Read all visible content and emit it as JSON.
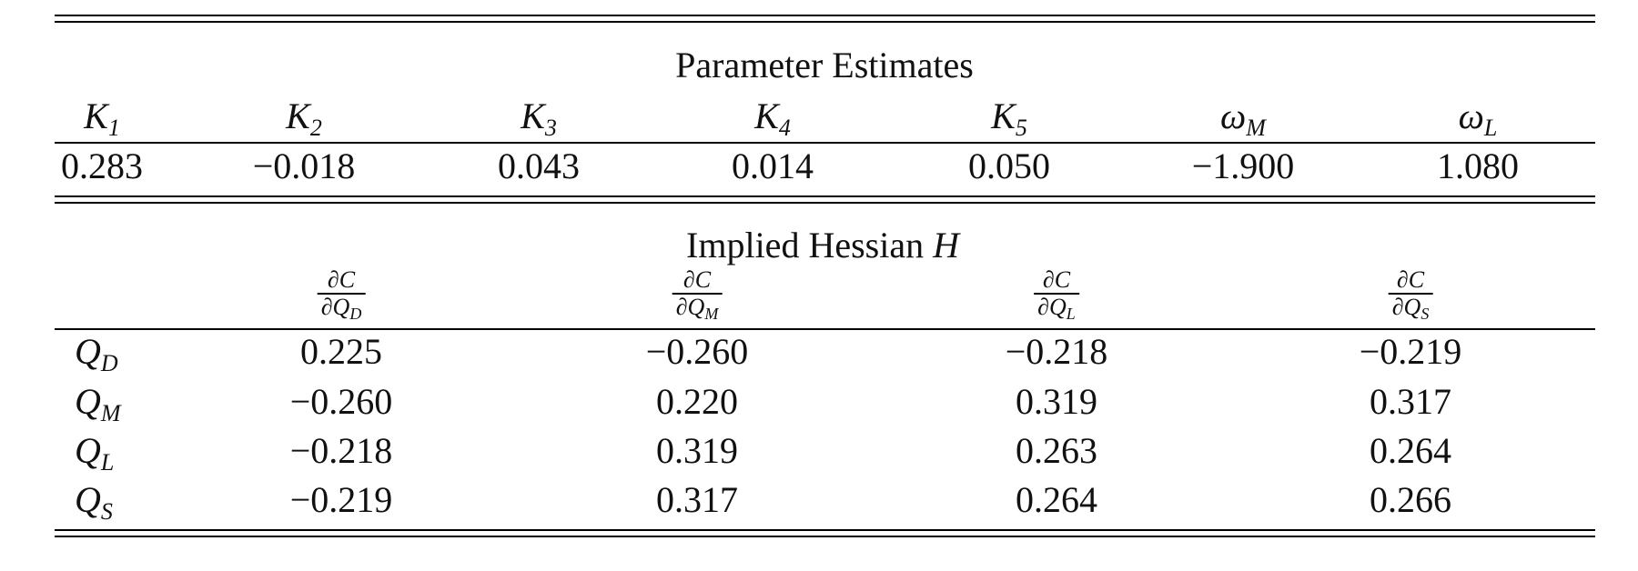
{
  "param_section": {
    "title": "Parameter Estimates",
    "columns": [
      {
        "base": "K",
        "sub": "1"
      },
      {
        "base": "K",
        "sub": "2"
      },
      {
        "base": "K",
        "sub": "3"
      },
      {
        "base": "K",
        "sub": "4"
      },
      {
        "base": "K",
        "sub": "5"
      },
      {
        "base": "ω",
        "sub": "M"
      },
      {
        "base": "ω",
        "sub": "L"
      }
    ],
    "values": [
      "0.283",
      "−0.018",
      "0.043",
      "0.014",
      "0.050",
      "−1.900",
      "1.080"
    ]
  },
  "hessian_section": {
    "title": "Implied Hessian",
    "title_symbol": "H",
    "columns": [
      {
        "num": "∂C",
        "den": "∂Q",
        "den_sub": "D"
      },
      {
        "num": "∂C",
        "den": "∂Q",
        "den_sub": "M"
      },
      {
        "num": "∂C",
        "den": "∂Q",
        "den_sub": "L"
      },
      {
        "num": "∂C",
        "den": "∂Q",
        "den_sub": "S"
      }
    ],
    "rows": [
      {
        "label": "Q",
        "label_sub": "D",
        "values": [
          "0.225",
          "−0.260",
          "−0.218",
          "−0.219"
        ]
      },
      {
        "label": "Q",
        "label_sub": "M",
        "values": [
          "−0.260",
          "0.220",
          "0.319",
          "0.317"
        ]
      },
      {
        "label": "Q",
        "label_sub": "L",
        "values": [
          "−0.218",
          "0.319",
          "0.263",
          "0.264"
        ]
      },
      {
        "label": "Q",
        "label_sub": "S",
        "values": [
          "−0.219",
          "0.317",
          "0.264",
          "0.266"
        ]
      }
    ]
  }
}
